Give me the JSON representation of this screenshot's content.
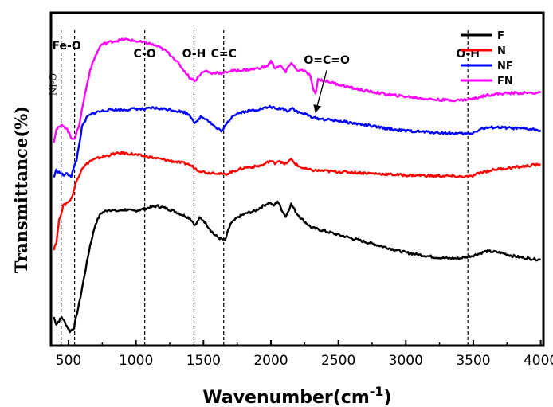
{
  "chart_data": {
    "type": "line",
    "xlabel": "Wavenumber(cm",
    "xlabel_sup": "-1",
    "xlabel_suffix": ")",
    "ylabel": "Transmittance(%)",
    "xlim": [
      370,
      4020
    ],
    "x_ticks": [
      500,
      1000,
      1500,
      2000,
      2500,
      3000,
      3500,
      4000
    ],
    "grid": false,
    "legend_position": "top-right",
    "series": [
      {
        "name": "F",
        "color": "#000000",
        "points": [
          [
            390,
            -0.1
          ],
          [
            410,
            -0.2
          ],
          [
            430,
            -0.15
          ],
          [
            450,
            -0.1
          ],
          [
            480,
            -0.2
          ],
          [
            510,
            -0.3
          ],
          [
            540,
            -0.25
          ],
          [
            580,
            0.1
          ],
          [
            620,
            0.5
          ],
          [
            660,
            0.9
          ],
          [
            700,
            1.2
          ],
          [
            740,
            1.35
          ],
          [
            800,
            1.4
          ],
          [
            860,
            1.38
          ],
          [
            920,
            1.4
          ],
          [
            980,
            1.38
          ],
          [
            1040,
            1.4
          ],
          [
            1100,
            1.43
          ],
          [
            1160,
            1.45
          ],
          [
            1220,
            1.42
          ],
          [
            1280,
            1.38
          ],
          [
            1340,
            1.33
          ],
          [
            1400,
            1.28
          ],
          [
            1440,
            1.18
          ],
          [
            1470,
            1.28
          ],
          [
            1500,
            1.25
          ],
          [
            1540,
            1.15
          ],
          [
            1580,
            1.05
          ],
          [
            1620,
            1.0
          ],
          [
            1660,
            0.97
          ],
          [
            1700,
            1.2
          ],
          [
            1760,
            1.3
          ],
          [
            1820,
            1.35
          ],
          [
            1880,
            1.38
          ],
          [
            1940,
            1.45
          ],
          [
            1990,
            1.5
          ],
          [
            2020,
            1.45
          ],
          [
            2050,
            1.52
          ],
          [
            2080,
            1.4
          ],
          [
            2110,
            1.3
          ],
          [
            2150,
            1.48
          ],
          [
            2190,
            1.35
          ],
          [
            2240,
            1.25
          ],
          [
            2300,
            1.15
          ],
          [
            2400,
            1.1
          ],
          [
            2500,
            1.05
          ],
          [
            2600,
            1.0
          ],
          [
            2700,
            0.95
          ],
          [
            2800,
            0.9
          ],
          [
            2900,
            0.85
          ],
          [
            3000,
            0.8
          ],
          [
            3100,
            0.77
          ],
          [
            3200,
            0.74
          ],
          [
            3300,
            0.72
          ],
          [
            3400,
            0.72
          ],
          [
            3500,
            0.76
          ],
          [
            3600,
            0.82
          ],
          [
            3700,
            0.8
          ],
          [
            3800,
            0.75
          ],
          [
            3900,
            0.72
          ],
          [
            4000,
            0.7
          ]
        ]
      },
      {
        "name": "N",
        "color": "#ff0000",
        "points": [
          [
            390,
            0.85
          ],
          [
            410,
            0.95
          ],
          [
            430,
            1.25
          ],
          [
            460,
            1.45
          ],
          [
            490,
            1.5
          ],
          [
            520,
            1.55
          ],
          [
            560,
            1.8
          ],
          [
            600,
            1.98
          ],
          [
            660,
            2.08
          ],
          [
            720,
            2.12
          ],
          [
            780,
            2.15
          ],
          [
            840,
            2.18
          ],
          [
            900,
            2.19
          ],
          [
            960,
            2.18
          ],
          [
            1020,
            2.16
          ],
          [
            1080,
            2.14
          ],
          [
            1140,
            2.12
          ],
          [
            1200,
            2.1
          ],
          [
            1260,
            2.08
          ],
          [
            1320,
            2.06
          ],
          [
            1380,
            2.04
          ],
          [
            1420,
            2.0
          ],
          [
            1460,
            1.95
          ],
          [
            1500,
            1.93
          ],
          [
            1540,
            1.91
          ],
          [
            1580,
            1.92
          ],
          [
            1620,
            1.9
          ],
          [
            1660,
            1.89
          ],
          [
            1700,
            1.92
          ],
          [
            1760,
            1.96
          ],
          [
            1820,
            1.99
          ],
          [
            1880,
            2.0
          ],
          [
            1940,
            2.02
          ],
          [
            1990,
            2.08
          ],
          [
            2030,
            2.05
          ],
          [
            2060,
            2.09
          ],
          [
            2100,
            2.03
          ],
          [
            2150,
            2.1
          ],
          [
            2200,
            2.01
          ],
          [
            2250,
            1.97
          ],
          [
            2300,
            1.95
          ],
          [
            2400,
            1.94
          ],
          [
            2500,
            1.93
          ],
          [
            2600,
            1.92
          ],
          [
            2700,
            1.91
          ],
          [
            2800,
            1.9
          ],
          [
            2900,
            1.89
          ],
          [
            3000,
            1.88
          ],
          [
            3100,
            1.88
          ],
          [
            3200,
            1.87
          ],
          [
            3300,
            1.87
          ],
          [
            3400,
            1.86
          ],
          [
            3480,
            1.86
          ],
          [
            3560,
            1.92
          ],
          [
            3660,
            1.96
          ],
          [
            3760,
            1.98
          ],
          [
            3860,
            2.0
          ],
          [
            3940,
            2.02
          ],
          [
            4000,
            2.03
          ]
        ]
      },
      {
        "name": "NF",
        "color": "#0000ff",
        "points": [
          [
            390,
            1.85
          ],
          [
            410,
            1.95
          ],
          [
            430,
            1.92
          ],
          [
            460,
            1.88
          ],
          [
            490,
            1.9
          ],
          [
            520,
            1.87
          ],
          [
            560,
            2.1
          ],
          [
            600,
            2.55
          ],
          [
            640,
            2.7
          ],
          [
            700,
            2.76
          ],
          [
            760,
            2.78
          ],
          [
            820,
            2.8
          ],
          [
            880,
            2.79
          ],
          [
            940,
            2.8
          ],
          [
            1000,
            2.81
          ],
          [
            1060,
            2.8
          ],
          [
            1120,
            2.82
          ],
          [
            1180,
            2.81
          ],
          [
            1240,
            2.8
          ],
          [
            1300,
            2.78
          ],
          [
            1360,
            2.76
          ],
          [
            1400,
            2.72
          ],
          [
            1440,
            2.6
          ],
          [
            1480,
            2.7
          ],
          [
            1520,
            2.67
          ],
          [
            1560,
            2.6
          ],
          [
            1600,
            2.53
          ],
          [
            1640,
            2.5
          ],
          [
            1680,
            2.62
          ],
          [
            1720,
            2.72
          ],
          [
            1780,
            2.76
          ],
          [
            1840,
            2.78
          ],
          [
            1900,
            2.8
          ],
          [
            1960,
            2.82
          ],
          [
            2000,
            2.84
          ],
          [
            2040,
            2.8
          ],
          [
            2080,
            2.82
          ],
          [
            2120,
            2.78
          ],
          [
            2160,
            2.82
          ],
          [
            2200,
            2.76
          ],
          [
            2260,
            2.73
          ],
          [
            2320,
            2.68
          ],
          [
            2400,
            2.66
          ],
          [
            2500,
            2.64
          ],
          [
            2600,
            2.61
          ],
          [
            2700,
            2.58
          ],
          [
            2800,
            2.55
          ],
          [
            2900,
            2.52
          ],
          [
            3000,
            2.5
          ],
          [
            3100,
            2.49
          ],
          [
            3200,
            2.48
          ],
          [
            3300,
            2.47
          ],
          [
            3400,
            2.46
          ],
          [
            3480,
            2.46
          ],
          [
            3560,
            2.53
          ],
          [
            3660,
            2.55
          ],
          [
            3760,
            2.54
          ],
          [
            3860,
            2.53
          ],
          [
            3940,
            2.52
          ],
          [
            4000,
            2.51
          ]
        ]
      },
      {
        "name": "FN",
        "color": "#ff00ff",
        "points": [
          [
            390,
            2.35
          ],
          [
            410,
            2.52
          ],
          [
            430,
            2.55
          ],
          [
            460,
            2.58
          ],
          [
            490,
            2.52
          ],
          [
            520,
            2.4
          ],
          [
            550,
            2.4
          ],
          [
            580,
            2.6
          ],
          [
            620,
            3.0
          ],
          [
            660,
            3.35
          ],
          [
            700,
            3.55
          ],
          [
            740,
            3.7
          ],
          [
            800,
            3.74
          ],
          [
            860,
            3.76
          ],
          [
            920,
            3.78
          ],
          [
            980,
            3.76
          ],
          [
            1040,
            3.74
          ],
          [
            1100,
            3.72
          ],
          [
            1160,
            3.68
          ],
          [
            1220,
            3.62
          ],
          [
            1280,
            3.52
          ],
          [
            1340,
            3.38
          ],
          [
            1400,
            3.24
          ],
          [
            1440,
            3.2
          ],
          [
            1480,
            3.3
          ],
          [
            1520,
            3.34
          ],
          [
            1560,
            3.3
          ],
          [
            1600,
            3.32
          ],
          [
            1640,
            3.3
          ],
          [
            1680,
            3.33
          ],
          [
            1740,
            3.34
          ],
          [
            1800,
            3.35
          ],
          [
            1860,
            3.36
          ],
          [
            1920,
            3.38
          ],
          [
            1970,
            3.4
          ],
          [
            2000,
            3.47
          ],
          [
            2030,
            3.38
          ],
          [
            2070,
            3.41
          ],
          [
            2110,
            3.32
          ],
          [
            2150,
            3.46
          ],
          [
            2190,
            3.35
          ],
          [
            2240,
            3.34
          ],
          [
            2290,
            3.28
          ],
          [
            2310,
            3.1
          ],
          [
            2330,
            3.02
          ],
          [
            2350,
            3.22
          ],
          [
            2400,
            3.2
          ],
          [
            2500,
            3.15
          ],
          [
            2600,
            3.1
          ],
          [
            2700,
            3.06
          ],
          [
            2800,
            3.03
          ],
          [
            2900,
            3.0
          ],
          [
            3000,
            2.98
          ],
          [
            3100,
            2.96
          ],
          [
            3200,
            2.94
          ],
          [
            3300,
            2.93
          ],
          [
            3400,
            2.93
          ],
          [
            3500,
            2.95
          ],
          [
            3600,
            3.0
          ],
          [
            3700,
            3.02
          ],
          [
            3800,
            3.03
          ],
          [
            3900,
            3.03
          ],
          [
            4000,
            3.03
          ]
        ]
      }
    ],
    "vlines": [
      {
        "x": 445,
        "label": "Ni-O",
        "orientation": "vertical"
      },
      {
        "x": 545,
        "label": "Fe-O",
        "orientation": "horizontal"
      },
      {
        "x": 1065,
        "label": "C-O",
        "orientation": "horizontal"
      },
      {
        "x": 1430,
        "label": "O-H",
        "orientation": "horizontal"
      },
      {
        "x": 1650,
        "label": "C=C",
        "orientation": "horizontal"
      },
      {
        "x": 3460,
        "label": "O-H",
        "orientation": "horizontal"
      }
    ],
    "arrow_annotation": {
      "label": "O=C=O",
      "target_x": 2320
    }
  }
}
